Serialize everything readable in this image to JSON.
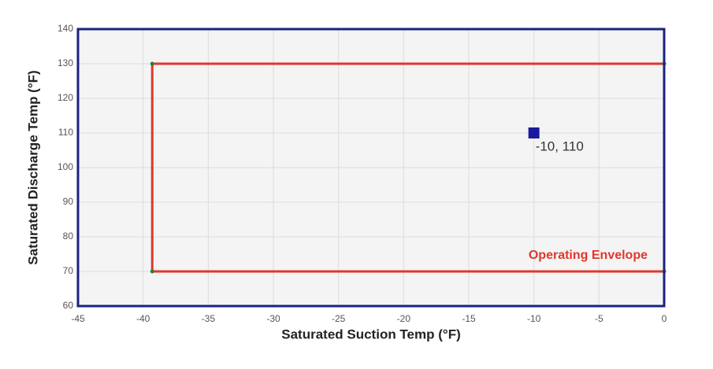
{
  "chart_data": {
    "type": "scatter",
    "x_label": "Saturated Suction Temp (°F)",
    "y_label": "Saturated Discharge Temp (°F)",
    "xlim": [
      -45,
      0
    ],
    "ylim": [
      60,
      140
    ],
    "xticks": [
      -45,
      -40,
      -35,
      -30,
      -25,
      -20,
      -15,
      -10,
      -5,
      0
    ],
    "yticks": [
      60,
      70,
      80,
      90,
      100,
      110,
      120,
      130,
      140
    ],
    "grid": true,
    "series": [
      {
        "name": "Operating Envelope",
        "color": "#e0362c",
        "marker_color": "#2e7d32",
        "closed": true,
        "x": [
          -39.3,
          -39.3,
          0,
          0
        ],
        "y": [
          70,
          130,
          130,
          70
        ]
      },
      {
        "color": "#1a1aa0",
        "x": [
          -10
        ],
        "y": [
          110
        ],
        "value_labels": [
          "-10, 110"
        ]
      }
    ]
  }
}
